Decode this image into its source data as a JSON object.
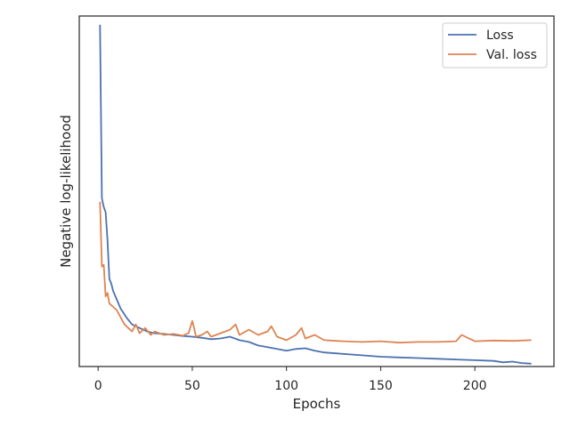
{
  "chart_data": {
    "type": "line",
    "title": "",
    "xlabel": "Epochs",
    "ylabel": "Negative log-likelihood",
    "xlim": [
      -10,
      242
    ],
    "ylim": [
      0.0,
      1.0
    ],
    "y_tick_labels_shown": false,
    "x_ticks": [
      0,
      50,
      100,
      150,
      200
    ],
    "grid": false,
    "legend_position": "top-right",
    "series": [
      {
        "name": "Loss",
        "color": "#4c72b0",
        "x": [
          1,
          2,
          3,
          4,
          5,
          6,
          7,
          8,
          10,
          12,
          15,
          18,
          22,
          26,
          30,
          35,
          40,
          45,
          50,
          55,
          60,
          65,
          70,
          75,
          80,
          85,
          90,
          95,
          100,
          105,
          110,
          115,
          120,
          130,
          140,
          150,
          160,
          170,
          180,
          190,
          200,
          210,
          215,
          220,
          225,
          230
        ],
        "y": [
          0.975,
          0.48,
          0.455,
          0.44,
          0.36,
          0.25,
          0.236,
          0.215,
          0.19,
          0.165,
          0.14,
          0.12,
          0.11,
          0.1,
          0.095,
          0.093,
          0.09,
          0.087,
          0.085,
          0.082,
          0.078,
          0.08,
          0.085,
          0.075,
          0.07,
          0.06,
          0.055,
          0.05,
          0.045,
          0.05,
          0.052,
          0.045,
          0.04,
          0.036,
          0.032,
          0.028,
          0.026,
          0.024,
          0.022,
          0.02,
          0.018,
          0.016,
          0.012,
          0.014,
          0.01,
          0.008
        ]
      },
      {
        "name": "Val. loss",
        "color": "#dd8452",
        "x": [
          1,
          2,
          3,
          4,
          5,
          6,
          7,
          8,
          10,
          12,
          14,
          16,
          18,
          20,
          22,
          25,
          28,
          30,
          35,
          40,
          45,
          48,
          50,
          51,
          52,
          55,
          58,
          60,
          65,
          70,
          73,
          75,
          80,
          85,
          90,
          92,
          95,
          100,
          105,
          108,
          110,
          115,
          120,
          130,
          140,
          150,
          160,
          170,
          180,
          190,
          193,
          200,
          210,
          220,
          230
        ],
        "y": [
          0.47,
          0.285,
          0.29,
          0.2,
          0.21,
          0.18,
          0.175,
          0.17,
          0.16,
          0.14,
          0.12,
          0.11,
          0.1,
          0.12,
          0.095,
          0.11,
          0.09,
          0.1,
          0.09,
          0.093,
          0.088,
          0.095,
          0.13,
          0.11,
          0.085,
          0.09,
          0.1,
          0.085,
          0.095,
          0.105,
          0.12,
          0.09,
          0.105,
          0.09,
          0.1,
          0.115,
          0.085,
          0.075,
          0.09,
          0.11,
          0.08,
          0.09,
          0.075,
          0.072,
          0.07,
          0.072,
          0.068,
          0.07,
          0.07,
          0.072,
          0.09,
          0.072,
          0.074,
          0.073,
          0.075
        ]
      }
    ]
  }
}
